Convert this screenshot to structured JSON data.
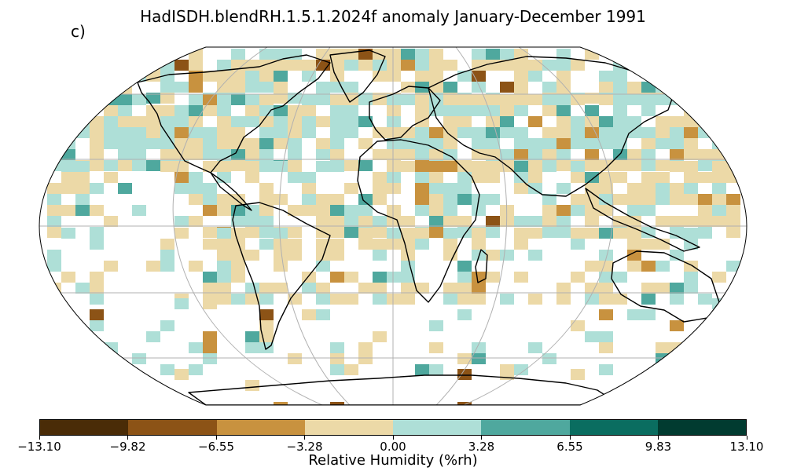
{
  "title": "HadISDH.blendRH.1.5.1.2024f anomaly January-December 1991",
  "panel_label": "c)",
  "projection": "Robinson",
  "colorbar": {
    "label": "Relative Humidity (%rh)",
    "tick_labels": [
      "−13.10",
      "−9.82",
      "−6.55",
      "−3.28",
      "0.00",
      "3.28",
      "6.55",
      "9.83",
      "13.10"
    ],
    "colors": [
      "#4a2c07",
      "#8c5316",
      "#c8923f",
      "#ecd9a7",
      "#aedfd7",
      "#4fa89e",
      "#0a6d60",
      "#013b30"
    ]
  },
  "map_colors": {
    "coastline": "#000000",
    "graticule": "#b0b0b0",
    "frame": "#000000",
    "missing": "#ffffff"
  }
}
